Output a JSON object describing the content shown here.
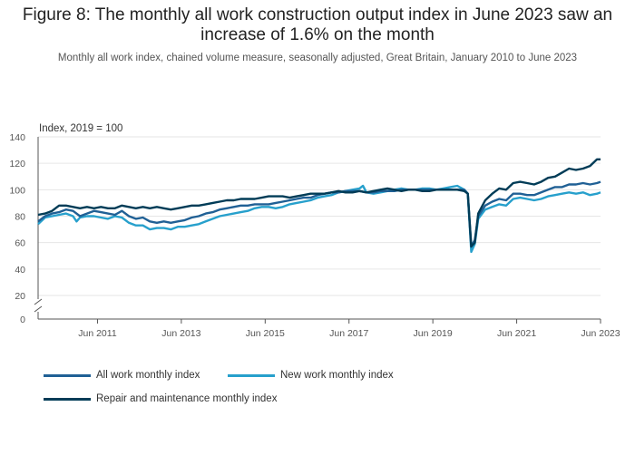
{
  "title": "Figure 8: The monthly all work construction output index in June 2023 saw an increase of 1.6% on the month",
  "subtitle": "Monthly all work index, chained volume measure, seasonally adjusted, Great Britain, January 2010 to June 2023",
  "colors": {
    "all_work": "#206095",
    "new_work": "#27a0cc",
    "repair": "#003c57",
    "grid": "#e6e6e6",
    "axis": "#555555"
  },
  "chart_data": {
    "type": "line",
    "ylabel": "Index, 2019 = 100",
    "ylim": [
      0,
      140
    ],
    "y_ticks": [
      "140",
      "120",
      "100",
      "80",
      "60",
      "40",
      "20",
      "0"
    ],
    "y_tick_values": [
      140,
      120,
      100,
      80,
      60,
      40,
      20,
      0
    ],
    "x_range_months": [
      0,
      161
    ],
    "x_tick_labels": [
      "Jun 2011",
      "Jun 2013",
      "Jun 2015",
      "Jun 2017",
      "Jun 2019",
      "Jun 2021",
      "Jun 2023"
    ],
    "x_tick_months": [
      17,
      41,
      65,
      89,
      113,
      137,
      161
    ],
    "axis_break": true,
    "series": [
      {
        "name": "All work monthly index",
        "key": "all_work",
        "points": [
          [
            0,
            76
          ],
          [
            2,
            80
          ],
          [
            4,
            82
          ],
          [
            6,
            83
          ],
          [
            8,
            85
          ],
          [
            10,
            84
          ],
          [
            12,
            80
          ],
          [
            14,
            82
          ],
          [
            16,
            84
          ],
          [
            18,
            83
          ],
          [
            20,
            82
          ],
          [
            22,
            81
          ],
          [
            24,
            84
          ],
          [
            26,
            80
          ],
          [
            28,
            78
          ],
          [
            30,
            79
          ],
          [
            32,
            76
          ],
          [
            34,
            75
          ],
          [
            36,
            76
          ],
          [
            38,
            75
          ],
          [
            40,
            76
          ],
          [
            42,
            77
          ],
          [
            44,
            79
          ],
          [
            46,
            80
          ],
          [
            48,
            82
          ],
          [
            50,
            83
          ],
          [
            52,
            85
          ],
          [
            54,
            86
          ],
          [
            56,
            87
          ],
          [
            58,
            88
          ],
          [
            60,
            88
          ],
          [
            62,
            89
          ],
          [
            64,
            89
          ],
          [
            66,
            89
          ],
          [
            68,
            90
          ],
          [
            70,
            91
          ],
          [
            72,
            92
          ],
          [
            74,
            93
          ],
          [
            76,
            94
          ],
          [
            78,
            94
          ],
          [
            80,
            96
          ],
          [
            82,
            97
          ],
          [
            84,
            98
          ],
          [
            86,
            98
          ],
          [
            88,
            99
          ],
          [
            90,
            99
          ],
          [
            92,
            99
          ],
          [
            94,
            98
          ],
          [
            96,
            98
          ],
          [
            98,
            99
          ],
          [
            100,
            99
          ],
          [
            102,
            99
          ],
          [
            104,
            100
          ],
          [
            106,
            100
          ],
          [
            108,
            100
          ],
          [
            110,
            100
          ],
          [
            112,
            100
          ],
          [
            114,
            100
          ],
          [
            116,
            100
          ],
          [
            118,
            100
          ],
          [
            120,
            100
          ],
          [
            122,
            100
          ],
          [
            123,
            97
          ],
          [
            124,
            57
          ],
          [
            125,
            62
          ],
          [
            126,
            80
          ],
          [
            128,
            88
          ],
          [
            130,
            91
          ],
          [
            132,
            93
          ],
          [
            134,
            92
          ],
          [
            136,
            97
          ],
          [
            138,
            97
          ],
          [
            140,
            96
          ],
          [
            142,
            96
          ],
          [
            144,
            98
          ],
          [
            146,
            100
          ],
          [
            148,
            102
          ],
          [
            150,
            102
          ],
          [
            152,
            104
          ],
          [
            154,
            104
          ],
          [
            156,
            105
          ],
          [
            158,
            104
          ],
          [
            160,
            105
          ],
          [
            161,
            106
          ]
        ]
      },
      {
        "name": "New work monthly index",
        "key": "new_work",
        "points": [
          [
            0,
            74
          ],
          [
            2,
            79
          ],
          [
            4,
            80
          ],
          [
            6,
            81
          ],
          [
            8,
            82
          ],
          [
            10,
            80
          ],
          [
            11,
            76
          ],
          [
            12,
            79
          ],
          [
            14,
            80
          ],
          [
            16,
            80
          ],
          [
            18,
            79
          ],
          [
            20,
            78
          ],
          [
            22,
            80
          ],
          [
            24,
            79
          ],
          [
            26,
            75
          ],
          [
            28,
            73
          ],
          [
            30,
            73
          ],
          [
            32,
            70
          ],
          [
            34,
            71
          ],
          [
            36,
            71
          ],
          [
            38,
            70
          ],
          [
            40,
            72
          ],
          [
            42,
            72
          ],
          [
            44,
            73
          ],
          [
            46,
            74
          ],
          [
            48,
            76
          ],
          [
            50,
            78
          ],
          [
            52,
            80
          ],
          [
            54,
            81
          ],
          [
            56,
            82
          ],
          [
            58,
            83
          ],
          [
            60,
            84
          ],
          [
            62,
            86
          ],
          [
            64,
            87
          ],
          [
            66,
            87
          ],
          [
            68,
            86
          ],
          [
            70,
            87
          ],
          [
            72,
            89
          ],
          [
            74,
            90
          ],
          [
            76,
            91
          ],
          [
            78,
            92
          ],
          [
            80,
            94
          ],
          [
            82,
            95
          ],
          [
            84,
            96
          ],
          [
            86,
            98
          ],
          [
            88,
            99
          ],
          [
            90,
            100
          ],
          [
            92,
            101
          ],
          [
            93,
            103
          ],
          [
            94,
            98
          ],
          [
            96,
            97
          ],
          [
            98,
            98
          ],
          [
            100,
            99
          ],
          [
            102,
            100
          ],
          [
            104,
            101
          ],
          [
            106,
            100
          ],
          [
            108,
            100
          ],
          [
            110,
            101
          ],
          [
            112,
            101
          ],
          [
            114,
            100
          ],
          [
            116,
            101
          ],
          [
            118,
            102
          ],
          [
            120,
            103
          ],
          [
            122,
            100
          ],
          [
            123,
            97
          ],
          [
            124,
            53
          ],
          [
            125,
            59
          ],
          [
            126,
            78
          ],
          [
            128,
            85
          ],
          [
            130,
            87
          ],
          [
            132,
            89
          ],
          [
            134,
            88
          ],
          [
            136,
            93
          ],
          [
            138,
            94
          ],
          [
            140,
            93
          ],
          [
            142,
            92
          ],
          [
            144,
            93
          ],
          [
            146,
            95
          ],
          [
            148,
            96
          ],
          [
            150,
            97
          ],
          [
            152,
            98
          ],
          [
            154,
            97
          ],
          [
            156,
            98
          ],
          [
            158,
            96
          ],
          [
            160,
            97
          ],
          [
            161,
            98
          ]
        ]
      },
      {
        "name": "Repair and maintenance monthly index",
        "key": "repair",
        "points": [
          [
            0,
            81
          ],
          [
            2,
            82
          ],
          [
            4,
            84
          ],
          [
            6,
            88
          ],
          [
            8,
            88
          ],
          [
            10,
            87
          ],
          [
            12,
            86
          ],
          [
            14,
            87
          ],
          [
            16,
            86
          ],
          [
            18,
            87
          ],
          [
            20,
            86
          ],
          [
            22,
            86
          ],
          [
            24,
            88
          ],
          [
            26,
            87
          ],
          [
            28,
            86
          ],
          [
            30,
            87
          ],
          [
            32,
            86
          ],
          [
            34,
            87
          ],
          [
            36,
            86
          ],
          [
            38,
            85
          ],
          [
            40,
            86
          ],
          [
            42,
            87
          ],
          [
            44,
            88
          ],
          [
            46,
            88
          ],
          [
            48,
            89
          ],
          [
            50,
            90
          ],
          [
            52,
            91
          ],
          [
            54,
            92
          ],
          [
            56,
            92
          ],
          [
            58,
            93
          ],
          [
            60,
            93
          ],
          [
            62,
            93
          ],
          [
            64,
            94
          ],
          [
            66,
            95
          ],
          [
            68,
            95
          ],
          [
            70,
            95
          ],
          [
            72,
            94
          ],
          [
            74,
            95
          ],
          [
            76,
            96
          ],
          [
            78,
            97
          ],
          [
            80,
            97
          ],
          [
            82,
            97
          ],
          [
            84,
            98
          ],
          [
            86,
            99
          ],
          [
            88,
            98
          ],
          [
            90,
            98
          ],
          [
            92,
            99
          ],
          [
            94,
            98
          ],
          [
            96,
            99
          ],
          [
            98,
            100
          ],
          [
            100,
            101
          ],
          [
            102,
            100
          ],
          [
            104,
            99
          ],
          [
            106,
            100
          ],
          [
            108,
            100
          ],
          [
            110,
            99
          ],
          [
            112,
            99
          ],
          [
            114,
            100
          ],
          [
            116,
            100
          ],
          [
            118,
            100
          ],
          [
            120,
            100
          ],
          [
            122,
            99
          ],
          [
            123,
            97
          ],
          [
            124,
            57
          ],
          [
            125,
            60
          ],
          [
            126,
            82
          ],
          [
            128,
            92
          ],
          [
            130,
            97
          ],
          [
            132,
            101
          ],
          [
            134,
            100
          ],
          [
            136,
            105
          ],
          [
            138,
            106
          ],
          [
            140,
            105
          ],
          [
            142,
            104
          ],
          [
            144,
            106
          ],
          [
            146,
            109
          ],
          [
            148,
            110
          ],
          [
            150,
            113
          ],
          [
            152,
            116
          ],
          [
            154,
            115
          ],
          [
            156,
            116
          ],
          [
            158,
            118
          ],
          [
            160,
            123
          ],
          [
            161,
            123
          ]
        ]
      }
    ],
    "legend": [
      "All work monthly index",
      "New work monthly index",
      "Repair and maintenance monthly index"
    ]
  }
}
